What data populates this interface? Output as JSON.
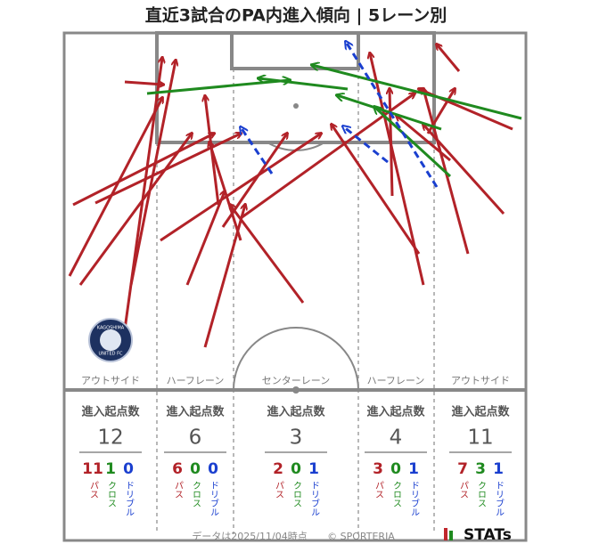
{
  "title": "直近3試合のPA内進入傾向 | 5レーン別",
  "lanes": [
    {
      "name": "アウトサイド",
      "label": "進入起点数",
      "total": 12,
      "pass": 11,
      "cross": 1,
      "dribble": 0,
      "pass_label": "パス",
      "cross_label": "クロス",
      "dribble_label": "ドリブル"
    },
    {
      "name": "ハーフレーン",
      "label": "進入起点数",
      "total": 6,
      "pass": 6,
      "cross": 0,
      "dribble": 0,
      "pass_label": "パス",
      "cross_label": "クロス",
      "dribble_label": "ドリブル"
    },
    {
      "name": "センターレーン",
      "label": "進入起点数",
      "total": 3,
      "pass": 2,
      "cross": 0,
      "dribble": 1,
      "pass_label": "パス",
      "cross_label": "クロス",
      "dribble_label": "ドリブル"
    },
    {
      "name": "ハーフレーン",
      "label": "進入起点数",
      "total": 4,
      "pass": 3,
      "cross": 0,
      "dribble": 1,
      "pass_label": "パス",
      "cross_label": "クロス",
      "dribble_label": "ドリブル"
    },
    {
      "name": "アウトサイド",
      "label": "進入起点数",
      "total": 11,
      "pass": 7,
      "cross": 3,
      "dribble": 1,
      "pass_label": "パス",
      "cross_label": "クロス",
      "dribble_label": "ドリブル"
    }
  ],
  "badge": {
    "top": "KAGOSHIMA",
    "bottom": "UNITED FC"
  },
  "footer": "データは2025/11/04時点",
  "copyright": "© SPORTERIA",
  "logo": "STATs"
}
